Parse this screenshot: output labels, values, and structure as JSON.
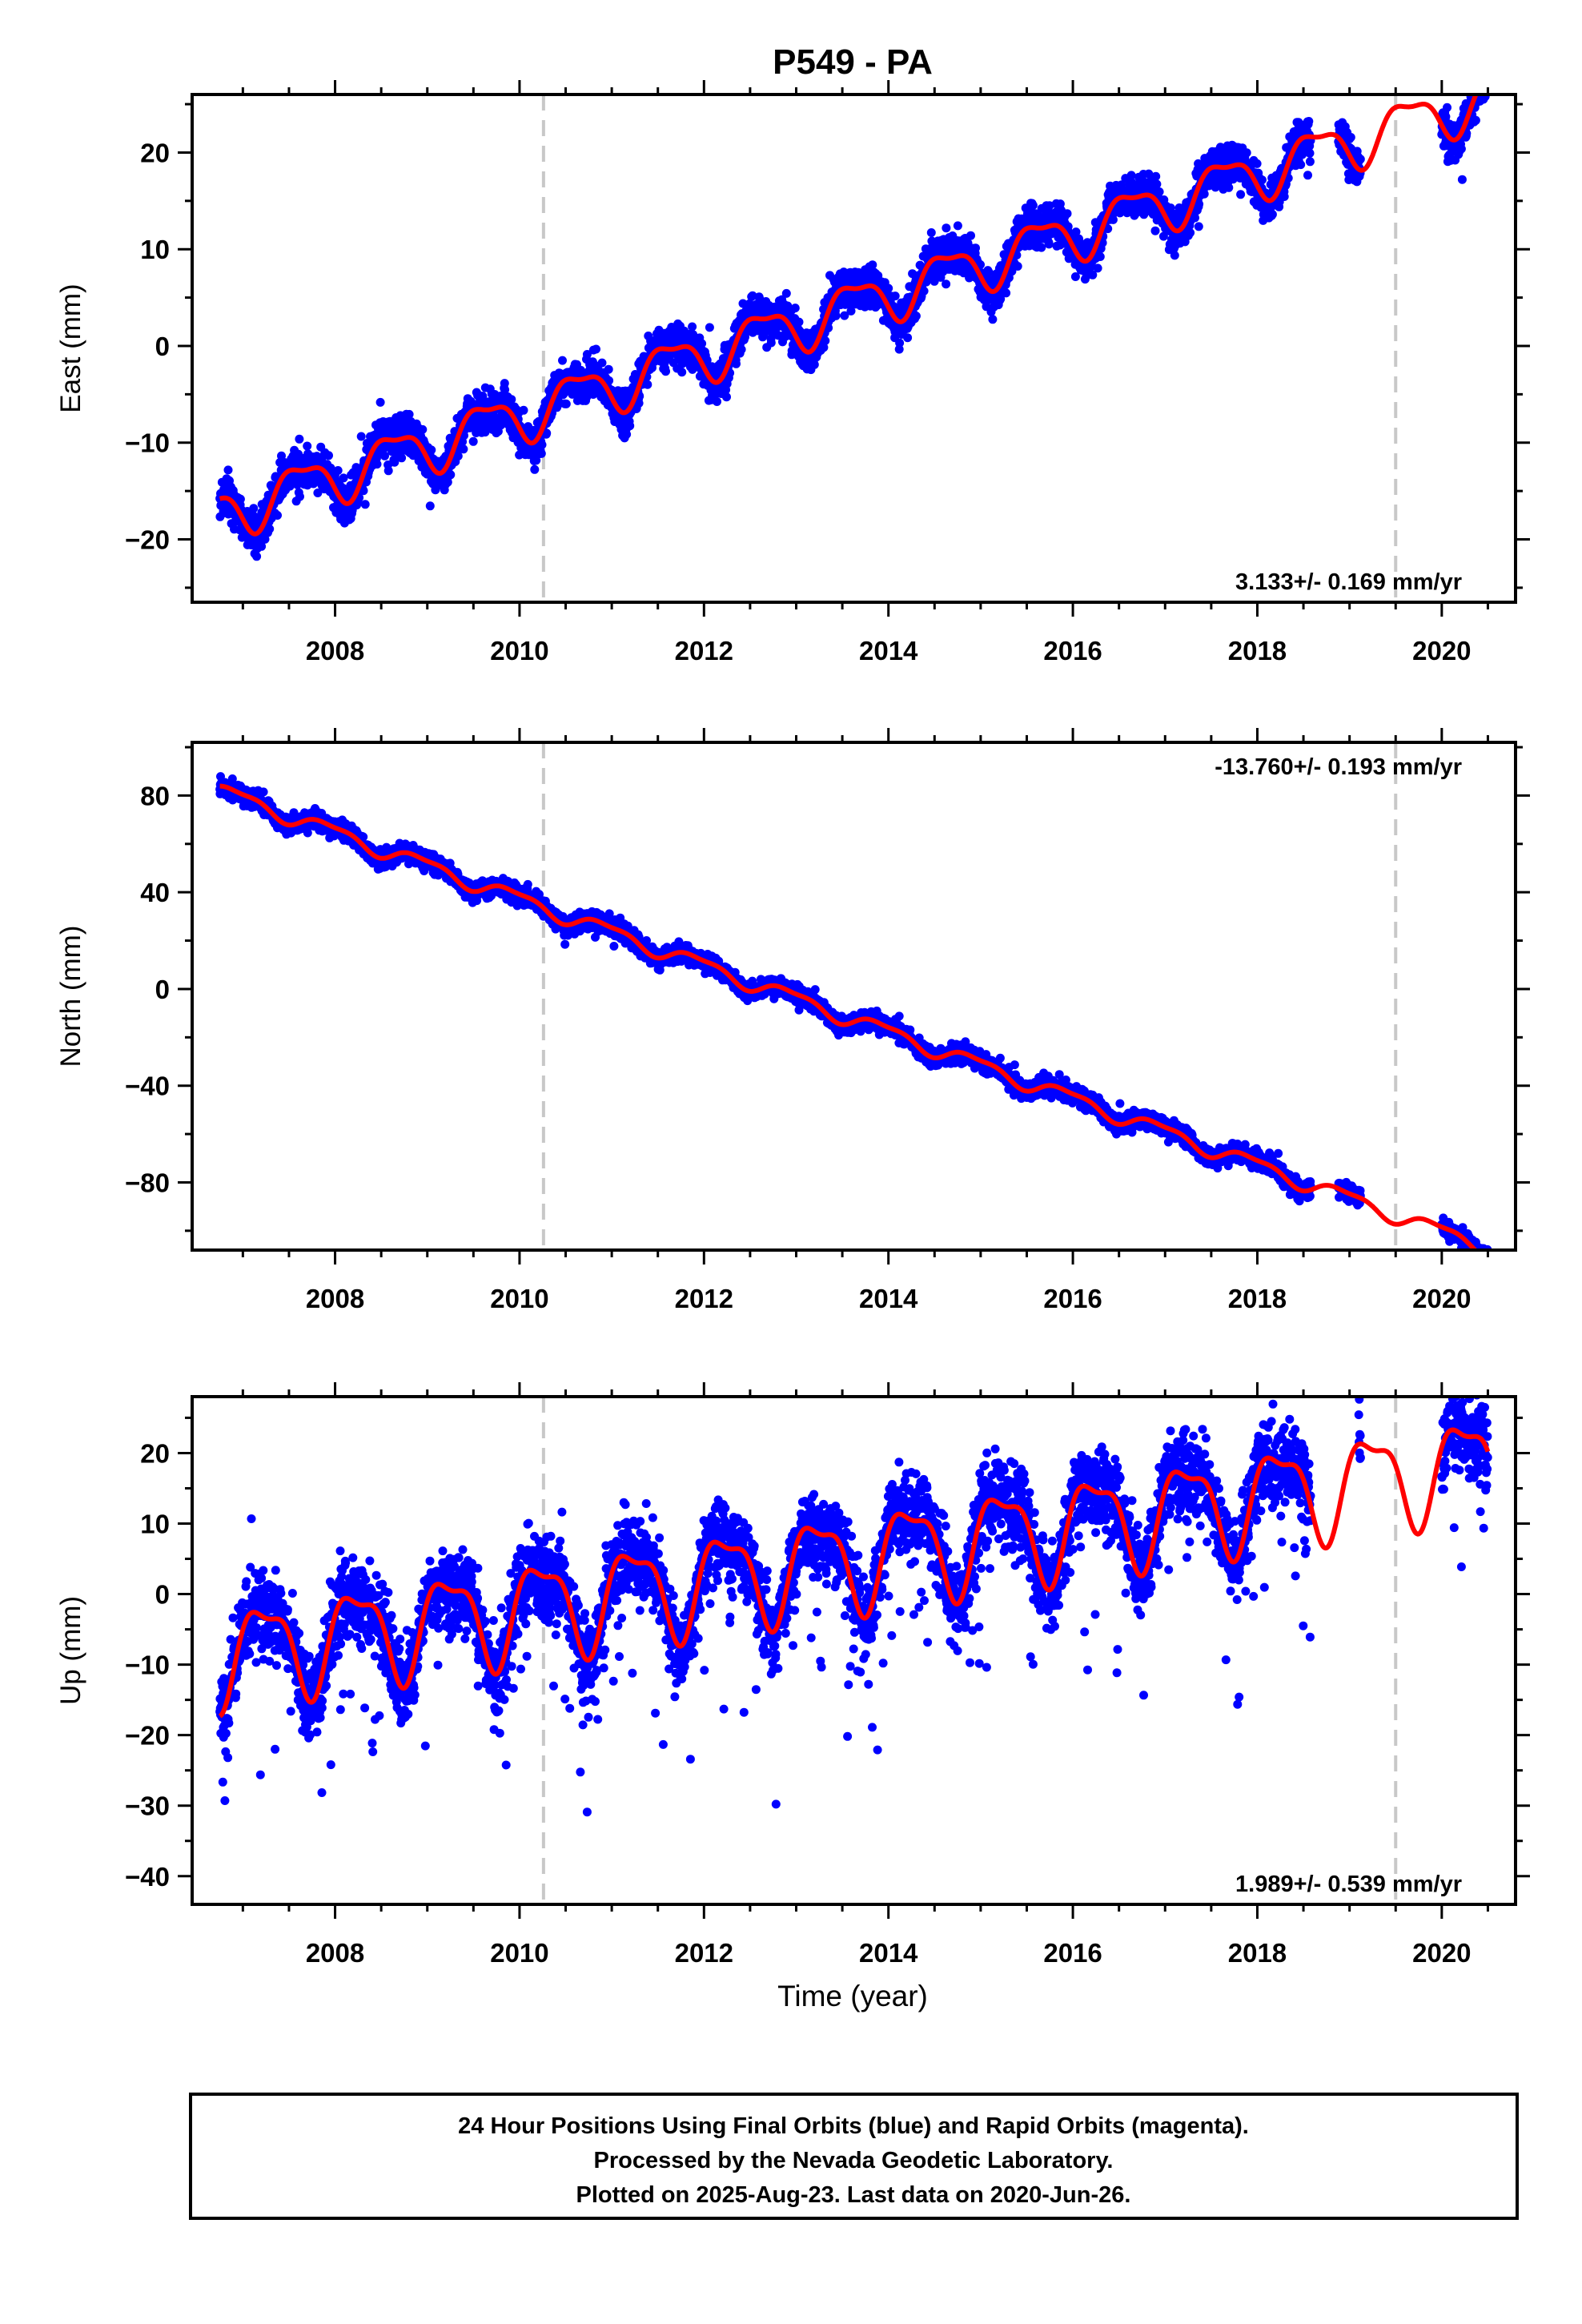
{
  "title": "P549 - PA",
  "colors": {
    "data_points": "#0000ff",
    "model_fit": "#ff0000",
    "event_lines": "#c8c8c8",
    "frame": "#000000"
  },
  "xlabel": "Time (year)",
  "footer": {
    "line1": "24 Hour Positions Using Final Orbits (blue) and Rapid Orbits (magenta).",
    "line2": "Processed by the Nevada Geodetic Laboratory.",
    "line3": "Plotted on 2025-Aug-23. Last data on 2020-Jun-26."
  },
  "chart_data": [
    {
      "type": "scatter",
      "component": "east",
      "ylabel": "East (mm)",
      "xlim": [
        2006.45,
        2020.8
      ],
      "ylim": [
        -26.5,
        26
      ],
      "xticks": [
        2008,
        2010,
        2012,
        2014,
        2016,
        2018,
        2020
      ],
      "xtick_labels": [
        "2008",
        "2010",
        "2012",
        "2014",
        "2016",
        "2018",
        "2020"
      ],
      "yticks": [
        -20,
        -10,
        0,
        10,
        20
      ],
      "ytick_labels": [
        "−20",
        "−10",
        "0",
        "10",
        "20"
      ],
      "grid": false,
      "event_lines": [
        2010.26,
        2019.5
      ],
      "rate_label": "3.133+/- 0.169 mm/yr",
      "rate_position": "bottom-right",
      "model": {
        "start": 2006.75,
        "end": 2020.5,
        "offset": -17.3,
        "rate": 3.133,
        "amplitude": 2.5,
        "phase": 0.62
      },
      "data_segments": [
        [
          2006.75,
          2018.58
        ],
        [
          2018.88,
          2019.12
        ],
        [
          2020.0,
          2020.5
        ]
      ],
      "noise": 1.5
    },
    {
      "type": "scatter",
      "component": "north",
      "ylabel": "North (mm)",
      "xlim": [
        2006.45,
        2020.8
      ],
      "ylim": [
        -108,
        102
      ],
      "xticks": [
        2008,
        2010,
        2012,
        2014,
        2016,
        2018,
        2020
      ],
      "xtick_labels": [
        "2008",
        "2010",
        "2012",
        "2014",
        "2016",
        "2018",
        "2020"
      ],
      "yticks": [
        -80,
        -40,
        0,
        40,
        80
      ],
      "ytick_labels": [
        "−80",
        "−40",
        "0",
        "40",
        "80"
      ],
      "grid": false,
      "event_lines": [
        2010.26,
        2019.5
      ],
      "rate_label": "-13.760+/- 0.193 mm/yr",
      "rate_position": "top-right",
      "model": {
        "start": 2006.75,
        "end": 2020.5,
        "offset": 82,
        "rate": -13.76,
        "amplitude": 3.0,
        "phase": 0.3
      },
      "data_segments": [
        [
          2006.75,
          2018.58
        ],
        [
          2018.88,
          2019.12
        ],
        [
          2020.0,
          2020.5
        ]
      ],
      "noise": 2.6
    },
    {
      "type": "scatter",
      "component": "up",
      "ylabel": "Up (mm)",
      "xlim": [
        2006.45,
        2020.8
      ],
      "ylim": [
        -44,
        28
      ],
      "xticks": [
        2008,
        2010,
        2012,
        2014,
        2016,
        2018,
        2020
      ],
      "xtick_labels": [
        "2008",
        "2010",
        "2012",
        "2014",
        "2016",
        "2018",
        "2020"
      ],
      "yticks": [
        -40,
        -30,
        -20,
        -10,
        0,
        10,
        20
      ],
      "ytick_labels": [
        "−40",
        "−30",
        "−20",
        "−10",
        "0",
        "10",
        "20"
      ],
      "grid": false,
      "event_lines": [
        2010.26,
        2019.5
      ],
      "rate_label": "1.989+/- 0.539 mm/yr",
      "rate_position": "bottom-right",
      "model": {
        "start": 2006.75,
        "end": 2020.5,
        "offset": -8.6,
        "rate": 1.989,
        "amplitude": 6.5,
        "phase": 0.02
      },
      "data_segments": [
        [
          2006.75,
          2018.58
        ],
        [
          2019.1,
          2019.12
        ],
        [
          2020.0,
          2020.5
        ]
      ],
      "noise": 4.0
    }
  ]
}
